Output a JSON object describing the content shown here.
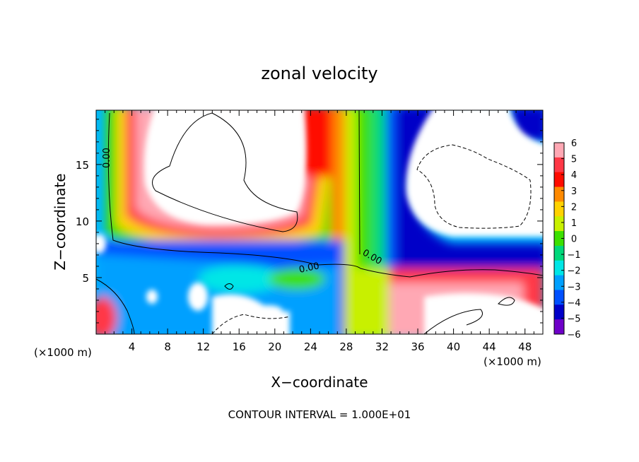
{
  "chart_data": {
    "type": "heatmap",
    "title": "zonal velocity",
    "xlabel": "X−coordinate",
    "ylabel": "Z−coordinate",
    "x_unit_left": "(×1000 m)",
    "x_unit_right": "(×1000 m)",
    "footer": "CONTOUR INTERVAL = 1.000E+01",
    "xlim": [
      0,
      50
    ],
    "ylim": [
      0,
      19.8
    ],
    "x_ticks": [
      4,
      8,
      12,
      16,
      20,
      24,
      28,
      32,
      36,
      40,
      44,
      48
    ],
    "y_ticks": [
      5,
      10,
      15
    ],
    "colorbar": {
      "range": [
        -6,
        6
      ],
      "ticks": [
        6,
        5,
        4,
        3,
        2,
        1,
        0,
        -1,
        -2,
        -3,
        -4,
        -5,
        -6
      ],
      "tick_labels": [
        "6",
        "5",
        "4",
        "3",
        "2",
        "1",
        "0",
        "−1",
        "−2",
        "−3",
        "−4",
        "−5",
        "−6"
      ],
      "colors": [
        "#ffa8b4",
        "#ff3846",
        "#ff0c00",
        "#ff8a00",
        "#ffd200",
        "#c8f000",
        "#3ce000",
        "#00d87a",
        "#00e6e6",
        "#00a0ff",
        "#0050ff",
        "#0000c8",
        "#6e00c8"
      ]
    },
    "contour_labels": [
      "0.00",
      "0.00",
      "0.00"
    ]
  }
}
